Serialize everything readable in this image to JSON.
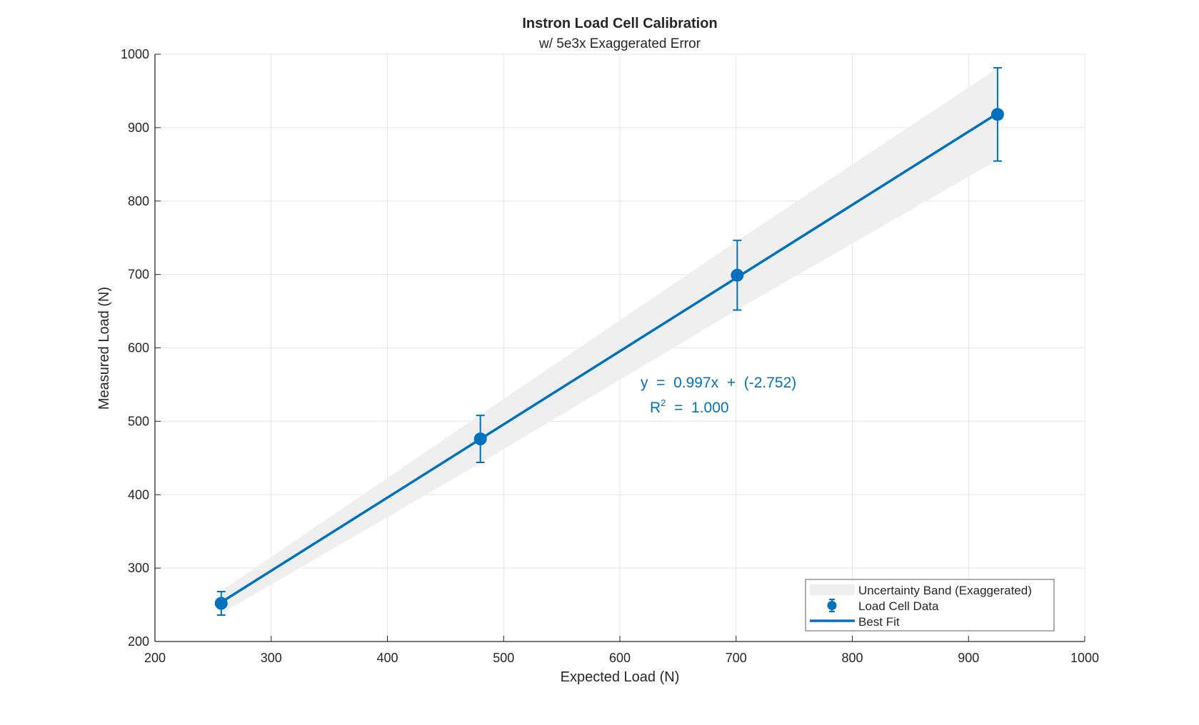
{
  "chart_data": {
    "type": "scatter",
    "title": "Instron Load Cell Calibration",
    "subtitle": "w/ 5e3x Exaggerated Error",
    "xlabel": "Expected Load (N)",
    "ylabel": "Measured Load (N)",
    "xlim": [
      200,
      1000
    ],
    "ylim": [
      200,
      1000
    ],
    "xticks": [
      200,
      300,
      400,
      500,
      600,
      700,
      800,
      900,
      1000
    ],
    "yticks": [
      200,
      300,
      400,
      500,
      600,
      700,
      800,
      900,
      1000
    ],
    "grid": true,
    "series": [
      {
        "name": "Load Cell Data",
        "kind": "errorbar",
        "x": [
          257,
          480,
          701,
          925
        ],
        "y": [
          252,
          476,
          699,
          918
        ],
        "error": [
          16,
          32,
          47.5,
          63.5
        ]
      },
      {
        "name": "Best Fit",
        "kind": "line",
        "slope": 0.997,
        "intercept": -2.752,
        "x_range": [
          257,
          925
        ]
      },
      {
        "name": "Uncertainty Band (Exaggerated)",
        "kind": "band",
        "x": [
          257,
          480,
          701,
          925
        ],
        "lower": [
          238,
          443,
          652,
          856
        ],
        "upper": [
          269,
          509,
          746,
          981
        ]
      }
    ],
    "annotation": {
      "equation": "y  =  0.997x  +  (-2.752)",
      "r2_label": "R",
      "r2_sup": "2",
      "r2_value": "  =  1.000"
    },
    "legend": {
      "placement": "bottom-right",
      "entries": [
        "Uncertainty Band (Exaggerated)",
        "Load Cell Data",
        "Best Fit"
      ]
    },
    "colors": {
      "data": "#0072BD",
      "band": "#EFEFEF",
      "grid": "#E5E5E5",
      "axis": "#262626"
    }
  }
}
